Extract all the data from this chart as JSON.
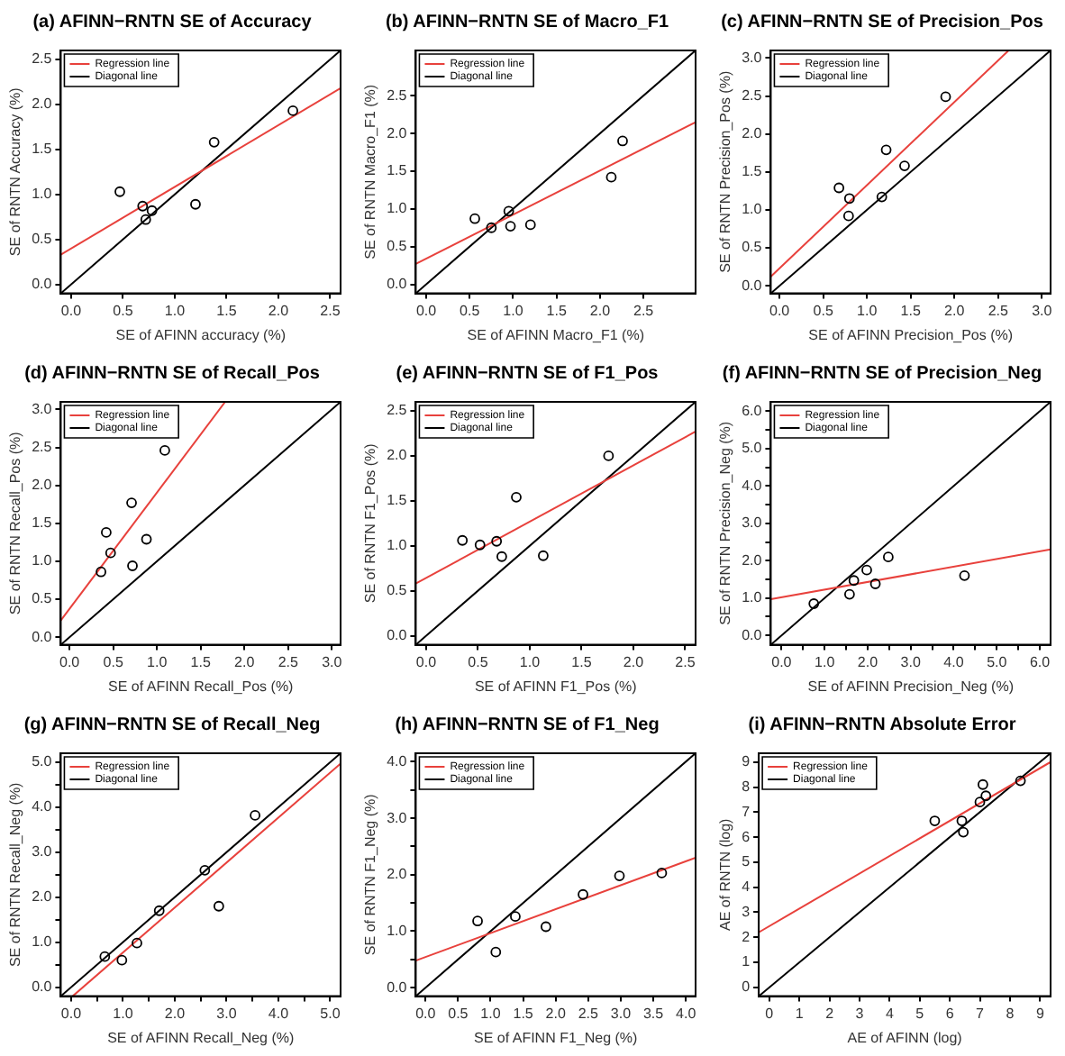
{
  "chart_data": [
    {
      "type": "scatter",
      "title": "(a) AFINN−RNTN SE of Accuracy",
      "xlabel": "SE of AFINN accuracy (%)",
      "ylabel": "SE of RNTN Accuracy (%)",
      "xlim": [
        -0.1,
        2.6
      ],
      "ylim": [
        -0.1,
        2.6
      ],
      "xticks": [
        {
          "value": 0,
          "label": "0.0"
        },
        {
          "value": 0.5,
          "label": "0.5"
        },
        {
          "value": 1,
          "label": "1.0"
        },
        {
          "value": 1.5,
          "label": "1.5"
        },
        {
          "value": 2,
          "label": "2.0"
        },
        {
          "value": 2.5,
          "label": "2.5"
        }
      ],
      "yticks": [
        {
          "value": 0,
          "label": "0.0"
        },
        {
          "value": 0.5,
          "label": "0.5"
        },
        {
          "value": 1,
          "label": "1.0"
        },
        {
          "value": 1.5,
          "label": "1.5"
        },
        {
          "value": 2,
          "label": "2.0"
        },
        {
          "value": 2.5,
          "label": "2.5"
        }
      ],
      "grid": false,
      "legend": "top left",
      "series": [
        {
          "color": "#000000",
          "marker": "circle",
          "x": [
            0.47,
            0.69,
            0.72,
            0.78,
            1.2,
            1.38,
            2.14
          ],
          "values": [
            1.03,
            0.87,
            0.72,
            0.82,
            0.89,
            1.58,
            1.93
          ]
        },
        {
          "type": "line",
          "name": "Regression line",
          "color": "#e8413c",
          "x": [
            -0.1,
            2.6
          ],
          "values": [
            0.33,
            2.18
          ]
        },
        {
          "type": "line",
          "name": "Diagonal line",
          "color": "#000000",
          "x": [
            -0.1,
            2.6
          ],
          "values": [
            -0.1,
            2.6
          ]
        }
      ]
    },
    {
      "type": "scatter",
      "title": "(b) AFINN−RNTN SE of Macro_F1",
      "xlabel": "SE of AFINN Macro_F1 (%)",
      "ylabel": "SE of RNTN Macro_F1 (%)",
      "xlim": [
        -0.12,
        3.1
      ],
      "ylim": [
        -0.12,
        3.1
      ],
      "xticks": [
        {
          "value": 0,
          "label": "0.0"
        },
        {
          "value": 0.5,
          "label": "0.5"
        },
        {
          "value": 1,
          "label": "1.0"
        },
        {
          "value": 1.5,
          "label": "1.5"
        },
        {
          "value": 2,
          "label": "2.0"
        },
        {
          "value": 2.5,
          "label": "2.5"
        }
      ],
      "yticks": [
        {
          "value": 0,
          "label": "0.0"
        },
        {
          "value": 0.5,
          "label": "0.5"
        },
        {
          "value": 1,
          "label": "1.0"
        },
        {
          "value": 1.5,
          "label": "1.5"
        },
        {
          "value": 2,
          "label": "2.0"
        },
        {
          "value": 2.5,
          "label": "2.5"
        }
      ],
      "grid": false,
      "legend": "top left",
      "series": [
        {
          "color": "#000000",
          "marker": "circle",
          "x": [
            0.56,
            0.75,
            0.95,
            0.97,
            1.2,
            2.13,
            2.26
          ],
          "values": [
            0.87,
            0.75,
            0.97,
            0.77,
            0.79,
            1.42,
            1.9
          ]
        },
        {
          "type": "line",
          "name": "Regression line",
          "color": "#e8413c",
          "x": [
            -0.12,
            3.1
          ],
          "values": [
            0.27,
            2.15
          ]
        },
        {
          "type": "line",
          "name": "Diagonal line",
          "color": "#000000",
          "x": [
            -0.12,
            3.1
          ],
          "values": [
            -0.12,
            3.1
          ]
        }
      ]
    },
    {
      "type": "scatter",
      "title": "(c) AFINN−RNTN SE of Precision_Pos",
      "xlabel": "SE of AFINN Precision_Pos (%)",
      "ylabel": "SE of RNTN Precision_Pos (%)",
      "xlim": [
        -0.1,
        3.1
      ],
      "ylim": [
        -0.1,
        3.1
      ],
      "xticks": [
        {
          "value": 0,
          "label": "0.0"
        },
        {
          "value": 0.5,
          "label": "0.5"
        },
        {
          "value": 1,
          "label": "1.0"
        },
        {
          "value": 1.5,
          "label": "1.5"
        },
        {
          "value": 2,
          "label": "2.0"
        },
        {
          "value": 2.5,
          "label": "2.5"
        },
        {
          "value": 3,
          "label": "3.0"
        }
      ],
      "yticks": [
        {
          "value": 0,
          "label": "0.0"
        },
        {
          "value": 0.5,
          "label": "0.5"
        },
        {
          "value": 1,
          "label": "1.0"
        },
        {
          "value": 1.5,
          "label": "1.5"
        },
        {
          "value": 2,
          "label": "2.0"
        },
        {
          "value": 2.5,
          "label": "2.5"
        },
        {
          "value": 3,
          "label": "3.0"
        }
      ],
      "grid": false,
      "legend": "top left",
      "series": [
        {
          "color": "#000000",
          "marker": "circle",
          "x": [
            0.68,
            0.8,
            0.79,
            1.17,
            1.22,
            1.43,
            1.9
          ],
          "values": [
            1.29,
            1.15,
            0.92,
            1.17,
            1.79,
            1.58,
            2.49
          ]
        },
        {
          "type": "line",
          "name": "Regression line",
          "color": "#e8413c",
          "x": [
            -0.1,
            2.62
          ],
          "values": [
            0.12,
            3.1
          ]
        },
        {
          "type": "line",
          "name": "Diagonal line",
          "color": "#000000",
          "x": [
            -0.1,
            3.1
          ],
          "values": [
            -0.1,
            3.1
          ]
        }
      ]
    },
    {
      "type": "scatter",
      "title": "(d) AFINN−RNTN SE of Recall_Pos",
      "xlabel": "SE of AFINN Recall_Pos (%)",
      "ylabel": "SE of RNTN Recall_Pos (%)",
      "xlim": [
        -0.1,
        3.1
      ],
      "ylim": [
        -0.1,
        3.1
      ],
      "xticks": [
        {
          "value": 0,
          "label": "0.0"
        },
        {
          "value": 0.5,
          "label": "0.5"
        },
        {
          "value": 1,
          "label": "1.0"
        },
        {
          "value": 1.5,
          "label": "1.5"
        },
        {
          "value": 2,
          "label": "2.0"
        },
        {
          "value": 2.5,
          "label": "2.5"
        },
        {
          "value": 3,
          "label": "3.0"
        }
      ],
      "yticks": [
        {
          "value": 0,
          "label": "0.0"
        },
        {
          "value": 0.5,
          "label": "0.5"
        },
        {
          "value": 1,
          "label": "1.0"
        },
        {
          "value": 1.5,
          "label": "1.5"
        },
        {
          "value": 2,
          "label": "2.0"
        },
        {
          "value": 2.5,
          "label": "2.5"
        },
        {
          "value": 3,
          "label": "3.0"
        }
      ],
      "grid": false,
      "legend": "top left",
      "series": [
        {
          "color": "#000000",
          "marker": "circle",
          "x": [
            0.36,
            0.42,
            0.47,
            0.71,
            0.72,
            0.88,
            1.09
          ],
          "values": [
            0.86,
            1.38,
            1.11,
            1.77,
            0.94,
            1.29,
            2.46
          ]
        },
        {
          "type": "line",
          "name": "Regression line",
          "color": "#e8413c",
          "x": [
            -0.1,
            1.78
          ],
          "values": [
            0.22,
            3.1
          ]
        },
        {
          "type": "line",
          "name": "Diagonal line",
          "color": "#000000",
          "x": [
            -0.1,
            3.1
          ],
          "values": [
            -0.1,
            3.1
          ]
        }
      ]
    },
    {
      "type": "scatter",
      "title": "(e) AFINN−RNTN SE of F1_Pos",
      "xlabel": "SE of AFINN F1_Pos (%)",
      "ylabel": "SE of RNTN F1_Pos (%)",
      "xlim": [
        -0.1,
        2.6
      ],
      "ylim": [
        -0.1,
        2.6
      ],
      "xticks": [
        {
          "value": 0,
          "label": "0.0"
        },
        {
          "value": 0.5,
          "label": "0.5"
        },
        {
          "value": 1,
          "label": "1.0"
        },
        {
          "value": 1.5,
          "label": "1.5"
        },
        {
          "value": 2,
          "label": "2.0"
        },
        {
          "value": 2.5,
          "label": "2.5"
        }
      ],
      "yticks": [
        {
          "value": 0,
          "label": "0.0"
        },
        {
          "value": 0.5,
          "label": "0.5"
        },
        {
          "value": 1,
          "label": "1.0"
        },
        {
          "value": 1.5,
          "label": "1.5"
        },
        {
          "value": 2,
          "label": "2.0"
        },
        {
          "value": 2.5,
          "label": "2.5"
        }
      ],
      "grid": false,
      "legend": "top left",
      "series": [
        {
          "color": "#000000",
          "marker": "circle",
          "x": [
            0.35,
            0.52,
            0.68,
            0.73,
            0.87,
            1.13,
            1.76
          ],
          "values": [
            1.06,
            1.01,
            1.05,
            0.88,
            1.54,
            0.89,
            2.0
          ]
        },
        {
          "type": "line",
          "name": "Regression line",
          "color": "#e8413c",
          "x": [
            -0.1,
            2.6
          ],
          "values": [
            0.58,
            2.27
          ]
        },
        {
          "type": "line",
          "name": "Diagonal line",
          "color": "#000000",
          "x": [
            -0.1,
            2.6
          ],
          "values": [
            -0.1,
            2.6
          ]
        }
      ]
    },
    {
      "type": "scatter",
      "title": "(f) AFINN−RNTN SE of Precision_Neg",
      "xlabel": "SE of AFINN Precision_Neg (%)",
      "ylabel": "SE of RNTN Precision_Neg (%)",
      "xlim": [
        -0.25,
        6.25
      ],
      "ylim": [
        -0.25,
        6.25
      ],
      "xticks": [
        {
          "value": 0,
          "label": "0.0"
        },
        {
          "value": 0.5,
          "label": null
        },
        {
          "value": 1,
          "label": "1.0"
        },
        {
          "value": 1.5,
          "label": null
        },
        {
          "value": 2,
          "label": "2.0"
        },
        {
          "value": 2.5,
          "label": null
        },
        {
          "value": 3,
          "label": "3.0"
        },
        {
          "value": 3.5,
          "label": null
        },
        {
          "value": 4,
          "label": "4.0"
        },
        {
          "value": 4.5,
          "label": null
        },
        {
          "value": 5,
          "label": "5.0"
        },
        {
          "value": 5.5,
          "label": null
        },
        {
          "value": 6,
          "label": "6.0"
        }
      ],
      "yticks": [
        {
          "value": 0,
          "label": "0.0"
        },
        {
          "value": 0.5,
          "label": null
        },
        {
          "value": 1,
          "label": "1.0"
        },
        {
          "value": 1.5,
          "label": null
        },
        {
          "value": 2,
          "label": "2.0"
        },
        {
          "value": 2.5,
          "label": null
        },
        {
          "value": 3,
          "label": "3.0"
        },
        {
          "value": 3.5,
          "label": null
        },
        {
          "value": 4,
          "label": "4.0"
        },
        {
          "value": 4.5,
          "label": null
        },
        {
          "value": 5,
          "label": "5.0"
        },
        {
          "value": 5.5,
          "label": null
        },
        {
          "value": 6,
          "label": "6.0"
        }
      ],
      "grid": false,
      "legend": "top left",
      "series": [
        {
          "color": "#000000",
          "marker": "circle",
          "x": [
            0.75,
            1.58,
            1.68,
            1.98,
            2.18,
            2.48,
            4.25
          ],
          "values": [
            0.85,
            1.1,
            1.47,
            1.75,
            1.38,
            2.1,
            1.6
          ]
        },
        {
          "type": "line",
          "name": "Regression line",
          "color": "#e8413c",
          "x": [
            -0.25,
            6.25
          ],
          "values": [
            0.97,
            2.3
          ]
        },
        {
          "type": "line",
          "name": "Diagonal line",
          "color": "#000000",
          "x": [
            -0.25,
            6.25
          ],
          "values": [
            -0.25,
            6.25
          ]
        }
      ]
    },
    {
      "type": "scatter",
      "title": "(g) AFINN−RNTN SE of Recall_Neg",
      "xlabel": "SE of AFINN Recall_Neg (%)",
      "ylabel": "SE of RNTN Recall_Neg (%)",
      "xlim": [
        -0.2,
        5.2
      ],
      "ylim": [
        -0.2,
        5.2
      ],
      "xticks": [
        {
          "value": 0,
          "label": "0.0"
        },
        {
          "value": 0.5,
          "label": null
        },
        {
          "value": 1,
          "label": "1.0"
        },
        {
          "value": 1.5,
          "label": null
        },
        {
          "value": 2,
          "label": "2.0"
        },
        {
          "value": 2.5,
          "label": null
        },
        {
          "value": 3,
          "label": "3.0"
        },
        {
          "value": 3.5,
          "label": null
        },
        {
          "value": 4,
          "label": "4.0"
        },
        {
          "value": 4.5,
          "label": null
        },
        {
          "value": 5,
          "label": "5.0"
        }
      ],
      "yticks": [
        {
          "value": 0,
          "label": "0.0"
        },
        {
          "value": 0.5,
          "label": null
        },
        {
          "value": 1,
          "label": "1.0"
        },
        {
          "value": 1.5,
          "label": null
        },
        {
          "value": 2,
          "label": "2.0"
        },
        {
          "value": 2.5,
          "label": null
        },
        {
          "value": 3,
          "label": "3.0"
        },
        {
          "value": 3.5,
          "label": null
        },
        {
          "value": 4,
          "label": "4.0"
        },
        {
          "value": 4.5,
          "label": null
        },
        {
          "value": 5,
          "label": "5.0"
        }
      ],
      "grid": false,
      "legend": "top left",
      "series": [
        {
          "color": "#000000",
          "marker": "circle",
          "x": [
            0.65,
            0.98,
            1.27,
            1.7,
            2.58,
            2.85,
            3.55
          ],
          "values": [
            0.68,
            0.6,
            0.98,
            1.7,
            2.6,
            1.8,
            3.82
          ]
        },
        {
          "type": "line",
          "name": "Regression line",
          "color": "#e8413c",
          "x": [
            0.03,
            5.2
          ],
          "values": [
            -0.2,
            4.97
          ]
        },
        {
          "type": "line",
          "name": "Diagonal line",
          "color": "#000000",
          "x": [
            -0.2,
            5.2
          ],
          "values": [
            -0.2,
            5.2
          ]
        }
      ]
    },
    {
      "type": "scatter",
      "title": "(h) AFINN−RNTN SE of F1_Neg",
      "xlabel": "SE of AFINN F1_Neg (%)",
      "ylabel": "SE of RNTN F1_Neg (%)",
      "xlim": [
        -0.15,
        4.15
      ],
      "ylim": [
        -0.15,
        4.15
      ],
      "xticks": [
        {
          "value": 0,
          "label": "0.0"
        },
        {
          "value": 0.5,
          "label": "0.5"
        },
        {
          "value": 1,
          "label": "1.0"
        },
        {
          "value": 1.5,
          "label": "1.5"
        },
        {
          "value": 2,
          "label": "2.0"
        },
        {
          "value": 2.5,
          "label": "2.5"
        },
        {
          "value": 3,
          "label": "3.0"
        },
        {
          "value": 3.5,
          "label": "3.5"
        },
        {
          "value": 4,
          "label": "4.0"
        }
      ],
      "yticks": [
        {
          "value": 0,
          "label": "0.0"
        },
        {
          "value": 0.5,
          "label": null
        },
        {
          "value": 1,
          "label": "1.0"
        },
        {
          "value": 1.5,
          "label": null
        },
        {
          "value": 2,
          "label": "2.0"
        },
        {
          "value": 2.5,
          "label": null
        },
        {
          "value": 3,
          "label": "3.0"
        },
        {
          "value": 3.5,
          "label": null
        },
        {
          "value": 4,
          "label": "4.0"
        }
      ],
      "grid": false,
      "legend": "top left",
      "series": [
        {
          "color": "#000000",
          "marker": "circle",
          "x": [
            0.8,
            1.08,
            1.38,
            1.85,
            2.42,
            2.98,
            3.63
          ],
          "values": [
            1.18,
            0.63,
            1.26,
            1.08,
            1.65,
            1.98,
            2.03
          ]
        },
        {
          "type": "line",
          "name": "Regression line",
          "color": "#e8413c",
          "x": [
            -0.15,
            4.15
          ],
          "values": [
            0.48,
            2.3
          ]
        },
        {
          "type": "line",
          "name": "Diagonal line",
          "color": "#000000",
          "x": [
            -0.15,
            4.15
          ],
          "values": [
            -0.15,
            4.15
          ]
        }
      ]
    },
    {
      "type": "scatter",
      "title": "(i) AFINN−RNTN Absolute Error",
      "xlabel": "AE of AFINN (log)",
      "ylabel": "AE of RNTN (log)",
      "xlim": [
        -0.35,
        9.35
      ],
      "ylim": [
        -0.35,
        9.35
      ],
      "xticks": [
        0,
        1,
        2,
        3,
        4,
        5,
        6,
        7,
        8,
        9
      ],
      "yticks": [
        0,
        1,
        2,
        3,
        4,
        5,
        6,
        7,
        8,
        9
      ],
      "grid": false,
      "legend": "top left",
      "series": [
        {
          "color": "#000000",
          "marker": "circle",
          "x": [
            5.5,
            6.4,
            6.45,
            7.0,
            7.1,
            7.2,
            8.35
          ],
          "values": [
            6.65,
            6.65,
            6.2,
            7.4,
            8.1,
            7.65,
            8.25
          ]
        },
        {
          "type": "line",
          "name": "Regression line",
          "color": "#e8413c",
          "x": [
            -0.35,
            9.35
          ],
          "values": [
            2.2,
            9.0
          ]
        },
        {
          "type": "line",
          "name": "Diagonal line",
          "color": "#000000",
          "x": [
            -0.35,
            9.35
          ],
          "values": [
            -0.35,
            9.35
          ]
        }
      ]
    }
  ]
}
